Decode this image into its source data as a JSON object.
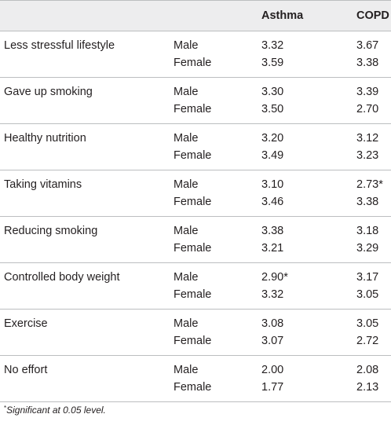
{
  "header": {
    "col_measure": "",
    "col_sex": "",
    "col_asthma": "Asthma",
    "col_copd": "COPD"
  },
  "rows": [
    {
      "measure": "Less stressful lifestyle",
      "values": [
        {
          "sex": "Male",
          "asthma": "3.32",
          "copd": "3.67"
        },
        {
          "sex": "Female",
          "asthma": "3.59",
          "copd": "3.38"
        }
      ]
    },
    {
      "measure": "Gave up smoking",
      "values": [
        {
          "sex": "Male",
          "asthma": "3.30",
          "copd": "3.39"
        },
        {
          "sex": "Female",
          "asthma": "3.50",
          "copd": "2.70"
        }
      ]
    },
    {
      "measure": "Healthy nutrition",
      "values": [
        {
          "sex": "Male",
          "asthma": "3.20",
          "copd": "3.12"
        },
        {
          "sex": "Female",
          "asthma": "3.49",
          "copd": "3.23"
        }
      ]
    },
    {
      "measure": "Taking vitamins",
      "values": [
        {
          "sex": "Male",
          "asthma": "3.10",
          "copd": "2.73*"
        },
        {
          "sex": "Female",
          "asthma": "3.46",
          "copd": "3.38"
        }
      ]
    },
    {
      "measure": "Reducing smoking",
      "values": [
        {
          "sex": "Male",
          "asthma": "3.38",
          "copd": "3.18"
        },
        {
          "sex": "Female",
          "asthma": "3.21",
          "copd": "3.29"
        }
      ]
    },
    {
      "measure": "Controlled body weight",
      "values": [
        {
          "sex": "Male",
          "asthma": "2.90*",
          "copd": "3.17"
        },
        {
          "sex": "Female",
          "asthma": "3.32",
          "copd": "3.05"
        }
      ]
    },
    {
      "measure": "Exercise",
      "values": [
        {
          "sex": "Male",
          "asthma": "3.08",
          "copd": "3.05"
        },
        {
          "sex": "Female",
          "asthma": "3.07",
          "copd": "2.72"
        }
      ]
    },
    {
      "measure": "No effort",
      "values": [
        {
          "sex": "Male",
          "asthma": "2.00",
          "copd": "2.08"
        },
        {
          "sex": "Female",
          "asthma": "1.77",
          "copd": "2.13"
        }
      ]
    }
  ],
  "footnote": {
    "marker": "*",
    "text": "Significant at 0.05 level."
  },
  "colors": {
    "header_bg": "#ededee",
    "rule": "#bcbec0",
    "text": "#231f20"
  }
}
